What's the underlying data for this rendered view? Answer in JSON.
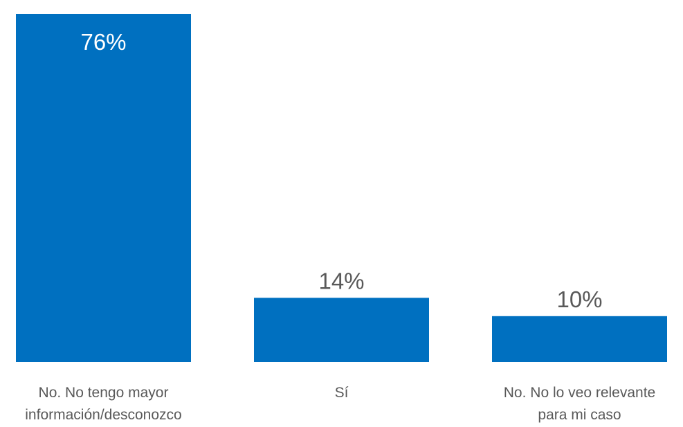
{
  "chart_data": {
    "type": "bar",
    "categories": [
      [
        "No. No tengo mayor",
        "información/desconozco"
      ],
      [
        "Sí"
      ],
      [
        "No. No lo veo relevante",
        "para mi caso"
      ]
    ],
    "values": [
      76,
      14,
      10
    ],
    "value_labels": [
      "76%",
      "14%",
      "10%"
    ],
    "ylim": [
      0,
      76
    ],
    "grid": false,
    "legend": "none",
    "colors": {
      "bar": "#0070c0",
      "label_inside": "#ffffff",
      "label_outside": "#595959",
      "category_text": "#595959"
    }
  }
}
